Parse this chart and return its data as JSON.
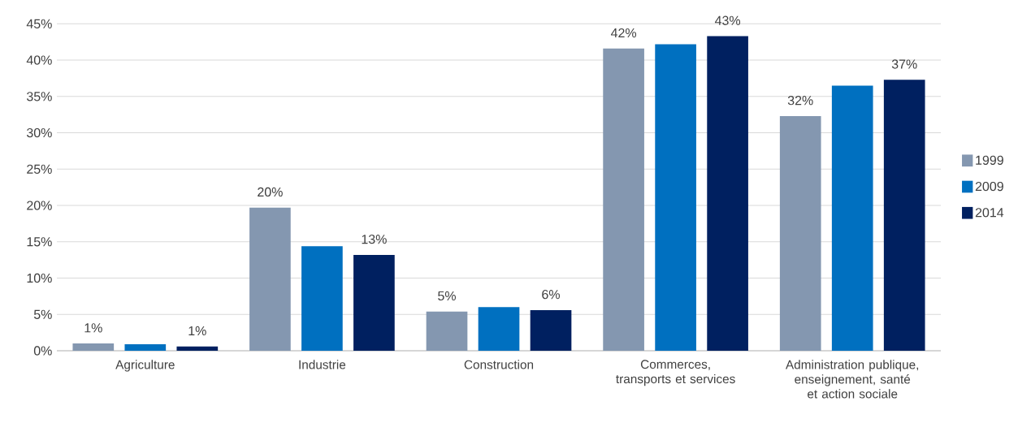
{
  "chart_data": {
    "type": "bar",
    "categories": [
      "Agriculture",
      "Industrie",
      "Construction",
      "Commerces, transports et services",
      "Administration publique, enseignement, santé et action sociale"
    ],
    "series": [
      {
        "name": "1999",
        "color": "#8497b0",
        "values": [
          1.0,
          19.7,
          5.4,
          41.6,
          32.3
        ],
        "value_labels": [
          "1%",
          "20%",
          "5%",
          "42%",
          "32%"
        ]
      },
      {
        "name": "2009",
        "color": "#0070c0",
        "values": [
          0.9,
          14.4,
          6.0,
          42.2,
          36.5
        ],
        "value_labels": [
          null,
          null,
          null,
          null,
          null
        ]
      },
      {
        "name": "2014",
        "color": "#002060",
        "values": [
          0.6,
          13.2,
          5.6,
          43.3,
          37.3
        ],
        "value_labels": [
          "1%",
          "13%",
          "6%",
          "43%",
          "37%"
        ]
      }
    ],
    "ylim": [
      0,
      45
    ],
    "yticks": [
      {
        "value": 0,
        "label": "0%"
      },
      {
        "value": 5,
        "label": "5%"
      },
      {
        "value": 10,
        "label": "10%"
      },
      {
        "value": 15,
        "label": "15%"
      },
      {
        "value": 20,
        "label": "20%"
      },
      {
        "value": 25,
        "label": "25%"
      },
      {
        "value": 30,
        "label": "30%"
      },
      {
        "value": 35,
        "label": "35%"
      },
      {
        "value": 40,
        "label": "40%"
      },
      {
        "value": 45,
        "label": "45%"
      }
    ],
    "grid": "y",
    "legend": "right"
  }
}
